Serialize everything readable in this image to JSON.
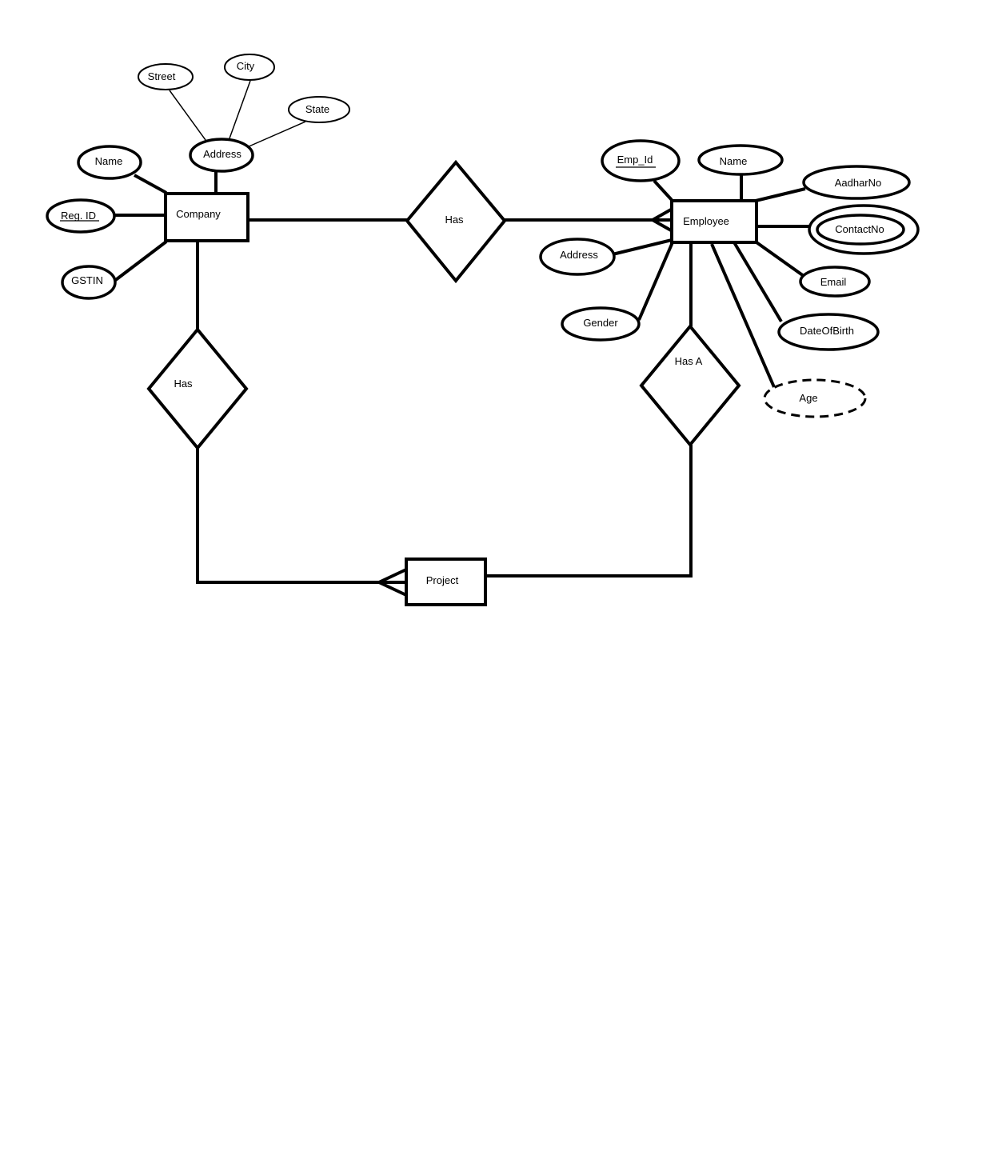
{
  "entities": {
    "company": "Company",
    "employee": "Employee",
    "project": "Project"
  },
  "relationships": {
    "company_employee": "Has",
    "company_project": "Has",
    "employee_project": "Has A"
  },
  "company_attributes": {
    "name": "Name",
    "reg_id": "Reg. ID",
    "gstin": "GSTIN",
    "address": "Address",
    "street": "Street",
    "city": "City",
    "state": "State"
  },
  "employee_attributes": {
    "emp_id": "Emp_Id",
    "name": "Name",
    "aadhar_no": "AadharNo",
    "contact_no": "ContactNo",
    "email": "Email",
    "date_of_birth": "DateOfBirth",
    "age": "Age",
    "address": "Address",
    "gender": "Gender"
  }
}
